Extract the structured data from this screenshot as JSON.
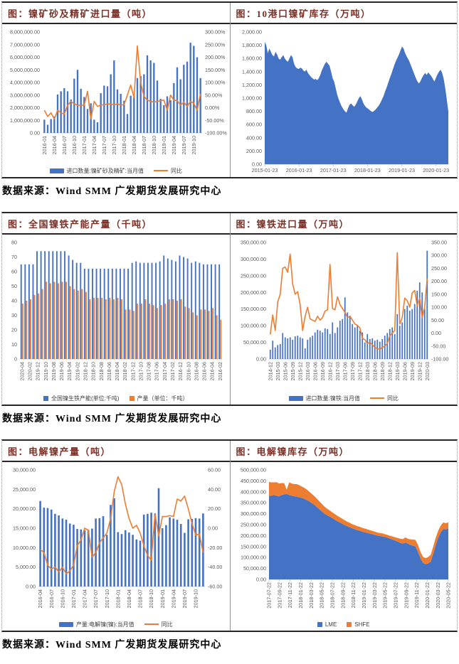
{
  "page": {
    "captions": [
      "数据来源：Wind SMM 广发期货发展研究中心",
      "数据来源：Wind SMM 广发期货发展研究中心",
      "数据来源：Wind SMM 广发期货发展研究中心"
    ]
  },
  "colors": {
    "bar_blue": "#4472C4",
    "line_orange": "#ED7D31",
    "title_maroon": "#7B3128",
    "axis_text": "#595959"
  },
  "chart_data": [
    {
      "type": "bar+line",
      "title": "图：镍矿砂及精矿进口量（吨）",
      "left_ticks": [
        "8,000,000.00",
        "7,000,000.00",
        "6,000,000.00",
        "5,000,000.00",
        "4,000,000.00",
        "3,000,000.00",
        "2,000,000.00",
        "1,000,000.00",
        "0.00"
      ],
      "right_ticks": [
        "300.00%",
        "250.00%",
        "200.00%",
        "150.00%",
        "100.00%",
        "50.00%",
        "0.00%",
        "-50.00%",
        "-100.00%"
      ],
      "left_range": [
        0,
        8000000
      ],
      "right_range": [
        -100,
        300
      ],
      "x_ticks": [
        "2016-01",
        "2016-04",
        "2016-07",
        "2016-10",
        "2017-01",
        "2017-04",
        "2017-07",
        "2017-10",
        "2018-01",
        "2018-04",
        "2018-07",
        "2018-10",
        "2019-01",
        "2019-04",
        "2019-07",
        "2019-10"
      ],
      "series": [
        {
          "name": "进口数量:镍矿砂及精矿:当月值",
          "type": "bar",
          "axis": "left",
          "color": "#4472C4",
          "values": [
            1050000,
            650000,
            1100000,
            1300000,
            3050000,
            3300000,
            3550000,
            3300000,
            2650000,
            4300000,
            5000000,
            3500000,
            2850000,
            1900000,
            2350000,
            1050000,
            850000,
            3150000,
            3750000,
            3700000,
            4650000,
            5750000,
            3450000,
            3100000,
            2550000,
            1500000,
            2950000,
            3000000,
            4350000,
            4500000,
            4650000,
            6150000,
            5750000,
            5550000,
            4150000,
            2700000,
            2200000,
            2900000,
            2600000,
            3950000,
            5200000,
            4250000,
            5400000,
            5650000,
            7150000,
            6900000,
            6000000,
            4350000
          ]
        },
        {
          "name": "同比",
          "type": "line",
          "axis": "right",
          "color": "#ED7D31",
          "values": [
            -10,
            -35,
            -20,
            -45,
            -10,
            -20,
            -25,
            10,
            25,
            15,
            10,
            10,
            10,
            65,
            -45,
            25,
            5,
            10,
            12,
            15,
            15,
            12,
            15,
            10,
            12,
            50,
            90,
            40,
            245,
            100,
            45,
            30,
            25,
            22,
            25,
            28,
            30,
            -10,
            50,
            30,
            28,
            10,
            22,
            5,
            25,
            18,
            -10,
            55
          ]
        }
      ]
    },
    {
      "type": "area",
      "title": "图：10港口镍矿库存（万吨）",
      "left_ticks": [
        "2,000.00",
        "1,800.00",
        "1,600.00",
        "1,400.00",
        "1,200.00",
        "1,000.00",
        "800.00",
        "600.00",
        "400.00",
        "200.00",
        "0.00"
      ],
      "left_range": [
        0,
        2000
      ],
      "x_ticks": [
        "2015-01-23",
        "2016-01-23",
        "2017-01-23",
        "2018-01-23",
        "2019-01-23",
        "2020-01-23"
      ],
      "series": [
        {
          "name": "10港口镍矿库存",
          "type": "area",
          "axis": "left",
          "color": "#4472C4",
          "values": [
            1850,
            1800,
            1680,
            1750,
            1700,
            1650,
            1630,
            1700,
            1660,
            1600,
            1580,
            1620,
            1650,
            1600,
            1570,
            1550,
            1600,
            1650,
            1620,
            1520,
            1470,
            1450,
            1440,
            1460,
            1450,
            1420,
            1400,
            1430,
            1380,
            1350,
            1320,
            1300,
            1280,
            1290,
            1270,
            1300,
            1350,
            1420,
            1470,
            1520,
            1550,
            1520,
            1490,
            1400,
            1300,
            1250,
            1150,
            1050,
            980,
            920,
            870,
            830,
            800,
            780,
            850,
            900,
            920,
            890,
            870,
            900,
            950,
            1000,
            1030,
            980,
            920,
            880,
            855,
            840,
            820,
            800,
            790,
            810,
            830,
            860,
            890,
            930,
            980,
            1030,
            1100,
            1160,
            1230,
            1300,
            1360,
            1430,
            1500,
            1560,
            1610,
            1660,
            1720,
            1780,
            1750,
            1680,
            1630,
            1590,
            1540,
            1480,
            1420,
            1360,
            1300,
            1250,
            1220,
            1260,
            1310,
            1350,
            1380,
            1350,
            1390,
            1360,
            1330,
            1290,
            1250,
            1310,
            1360,
            1400,
            1430,
            1380,
            1290,
            1150,
            980,
            800
          ]
        }
      ]
    },
    {
      "type": "grouped-bar",
      "title": "图：全国镍铁产能产量（千吨）",
      "left_ticks": [
        "80",
        "70",
        "60",
        "50",
        "40",
        "30",
        "20",
        "10",
        "0"
      ],
      "left_range": [
        0,
        80
      ],
      "x_ticks": [
        "2020-04",
        "2020-02",
        "2019-12",
        "2019-10",
        "2019-08",
        "2019-06",
        "2019-04",
        "2019-02",
        "2018-12",
        "2018-10",
        "2018-08",
        "2018-06",
        "2018-04",
        "2018-02",
        "2017-12",
        "2017-10",
        "2017-08",
        "2017-06",
        "2017-04",
        "2017-02",
        "2016-12",
        "2016-10",
        "2016-08",
        "2016-06",
        "2016-04",
        "2016-02"
      ],
      "series": [
        {
          "name": "全国镍生铁产能(单位:千吨)",
          "type": "bar",
          "axis": "left",
          "color": "#4472C4",
          "values": [
            65,
            65,
            65,
            65,
            74,
            74,
            74,
            74,
            74,
            74,
            74,
            74,
            71,
            68,
            66,
            66,
            62,
            62,
            62,
            62,
            62,
            62,
            62,
            62,
            62,
            62,
            62,
            62,
            66,
            67,
            66,
            66,
            66,
            66,
            66,
            67,
            71,
            69,
            68,
            67,
            71,
            70,
            69,
            66,
            67,
            66,
            65,
            65,
            65,
            65,
            65
          ]
        },
        {
          "name": "产量（单位：千吨）",
          "type": "bar",
          "axis": "left",
          "color": "#ED7D31",
          "values": [
            38,
            40,
            41,
            44,
            45,
            48,
            53,
            52,
            53,
            52,
            53,
            53,
            50,
            48,
            47,
            48,
            46,
            41,
            42,
            42,
            42,
            41,
            42,
            41,
            42,
            41,
            34,
            34,
            33,
            38,
            38,
            41,
            38,
            37,
            35,
            37,
            38,
            41,
            41,
            40,
            41,
            36,
            35,
            32,
            30,
            34,
            34,
            33,
            35,
            30,
            27
          ]
        }
      ]
    },
    {
      "type": "bar+line",
      "title": "图：镍铁进口量（万吨）",
      "left_ticks": [
        "350,000.00",
        "300,000.00",
        "250,000.00",
        "200,000.00",
        "150,000.00",
        "100,000.00",
        "50,000.00",
        "0.00"
      ],
      "right_ticks": [
        "350.00",
        "300.00",
        "250.00",
        "200.00",
        "150.00",
        "100.00",
        "50.00",
        "0.00",
        "-50.00",
        "-100.00"
      ],
      "left_range": [
        0,
        350000
      ],
      "right_range": [
        -100,
        350
      ],
      "x_ticks": [
        "2014-12",
        "2015-03",
        "2015-06",
        "2015-09",
        "2015-12",
        "2016-03",
        "2016-06",
        "2016-09",
        "2016-12",
        "2017-03",
        "2017-06",
        "2017-09",
        "2017-12",
        "2018-03",
        "2018-06",
        "2018-09",
        "2018-12",
        "2019-03",
        "2019-06",
        "2019-09",
        "2019-12",
        "2020-03"
      ],
      "series": [
        {
          "name": "进口数量:镍铁:当月值",
          "type": "bar",
          "axis": "left",
          "color": "#4472C4",
          "values": [
            28000,
            55000,
            35000,
            42000,
            45000,
            78000,
            65000,
            62000,
            65000,
            58000,
            68000,
            70000,
            65000,
            62000,
            32000,
            58000,
            65000,
            70000,
            80000,
            88000,
            85000,
            80000,
            92000,
            90000,
            75000,
            110000,
            78000,
            95000,
            115000,
            120000,
            185000,
            140000,
            130000,
            105000,
            95000,
            100000,
            85000,
            80000,
            50000,
            75000,
            60000,
            62000,
            55000,
            58000,
            52000,
            60000,
            70000,
            78000,
            90000,
            95000,
            75000,
            135000,
            100000,
            110000,
            150000,
            160000,
            145000,
            150000,
            165000,
            205000,
            230000,
            200000,
            150000,
            325000
          ]
        },
        {
          "name": "同比",
          "type": "line",
          "axis": "right",
          "color": "#ED7D31",
          "values": [
            -5,
            70,
            10,
            120,
            150,
            250,
            255,
            235,
            305,
            190,
            150,
            160,
            110,
            10,
            65,
            100,
            55,
            50,
            45,
            65,
            50,
            60,
            85,
            90,
            265,
            95,
            90,
            140,
            110,
            95,
            80,
            60,
            65,
            50,
            35,
            30,
            20,
            -20,
            -25,
            -40,
            -35,
            -45,
            -55,
            -60,
            -62,
            -55,
            -50,
            -40,
            -10,
            0,
            10,
            310,
            35,
            60,
            135,
            125,
            100,
            155,
            165,
            105,
            135,
            60,
            100,
            210
          ]
        }
      ]
    },
    {
      "type": "bar+line",
      "title": "图：电解镍产量（吨）",
      "left_ticks": [
        "30,000.00",
        "25,000.00",
        "20,000.00",
        "15,000.00",
        "10,000.00",
        "5,000.00",
        "0.00"
      ],
      "right_ticks": [
        "60.00",
        "40.00",
        "20.00",
        "0.00",
        "-20.00",
        "-40.00",
        "-60.00"
      ],
      "left_range": [
        0,
        30000
      ],
      "right_range": [
        -60,
        60
      ],
      "x_ticks": [
        "2016-04",
        "2016-07",
        "2016-10",
        "2017-01",
        "2017-04",
        "2017-07",
        "2017-10",
        "2018-01",
        "2018-04",
        "2018-07",
        "2018-10",
        "2019-01",
        "2019-04",
        "2019-07",
        "2019-10"
      ],
      "series": [
        {
          "name": "产量:电解镍(镍):当月值",
          "type": "bar",
          "axis": "left",
          "color": "#4472C4",
          "values": [
            22000,
            20300,
            20200,
            19800,
            18700,
            18300,
            17500,
            17200,
            16200,
            15900,
            14800,
            14700,
            14500,
            14500,
            14900,
            17500,
            17600,
            18100,
            13300,
            21000,
            22700,
            14000,
            13500,
            14500,
            13900,
            13300,
            12100,
            11800,
            18500,
            18700,
            19000,
            18800,
            25300,
            15000,
            15800,
            17800,
            17500,
            17200,
            16100,
            13800,
            17300,
            17400,
            17600,
            17500,
            18800
          ]
        },
        {
          "name": "同比",
          "type": "line",
          "axis": "right",
          "color": "#ED7D31",
          "values": [
            -22,
            -25,
            -38,
            -42,
            -40,
            -45,
            -40,
            -47,
            -44,
            -38,
            -18,
            -12,
            0,
            -2,
            -30,
            -25,
            -15,
            -10,
            -5,
            10,
            38,
            53,
            45,
            25,
            10,
            0,
            3,
            -5,
            -18,
            -28,
            -33,
            15,
            -8,
            12,
            12,
            13,
            12,
            30,
            28,
            33,
            20,
            5,
            -7,
            -6,
            -25
          ]
        }
      ]
    },
    {
      "type": "stacked-area",
      "title": "图：电解镍库存（万吨）",
      "left_ticks": [
        "500,000.00",
        "450,000.00",
        "400,000.00",
        "350,000.00",
        "300,000.00",
        "250,000.00",
        "200,000.00",
        "150,000.00",
        "100,000.00",
        "50,000.00",
        "0.00"
      ],
      "left_range": [
        0,
        500000
      ],
      "x_ticks": [
        "2017-07-22",
        "2017-09-22",
        "2017-11-22",
        "2018-01-22",
        "2018-03-22",
        "2018-05-22",
        "2018-07-22",
        "2018-09-22",
        "2018-11-22",
        "2019-01-22",
        "2019-03-22",
        "2019-05-22",
        "2019-07-22",
        "2019-09-22",
        "2019-11-22",
        "2020-01-22",
        "2020-03-22",
        "2020-05-22"
      ],
      "series": [
        {
          "name": "LME",
          "type": "area",
          "axis": "left",
          "color": "#4472C4",
          "values": [
            380000,
            383000,
            385000,
            382000,
            380000,
            385000,
            388000,
            390000,
            385000,
            382000,
            380000,
            378000,
            375000,
            372000,
            368000,
            362000,
            355000,
            348000,
            340000,
            330000,
            320000,
            310000,
            300000,
            293000,
            287000,
            280000,
            273000,
            266000,
            260000,
            254000,
            248000,
            243000,
            238000,
            233000,
            229000,
            225000,
            222000,
            218000,
            215000,
            212000,
            209000,
            206000,
            203000,
            200000,
            198000,
            196000,
            193000,
            190000,
            186000,
            182000,
            177000,
            172000,
            167000,
            163000,
            168000,
            163000,
            158000,
            154000,
            150000,
            125000,
            95000,
            75000,
            70000,
            73000,
            80000,
            115000,
            155000,
            190000,
            215000,
            230000,
            228000,
            232000
          ]
        },
        {
          "name": "SHFE",
          "type": "area",
          "axis": "left",
          "color": "#ED7D31",
          "values": [
            65000,
            60000,
            58000,
            62000,
            58000,
            55000,
            52000,
            20000,
            58000,
            56000,
            55000,
            57000,
            55000,
            52000,
            50000,
            48000,
            45000,
            42000,
            40000,
            38000,
            36000,
            34000,
            32000,
            30000,
            28000,
            27000,
            26000,
            25000,
            24000,
            23000,
            22000,
            21000,
            20000,
            19000,
            19000,
            18000,
            18000,
            17000,
            17000,
            16000,
            16000,
            15000,
            15000,
            14000,
            14000,
            14000,
            13000,
            13000,
            13000,
            14000,
            15000,
            17000,
            19000,
            21000,
            24000,
            22000,
            25000,
            28000,
            30000,
            32000,
            30000,
            28000,
            27000,
            29000,
            32000,
            34000,
            35000,
            33000,
            31000,
            30000,
            29000,
            28000
          ]
        }
      ]
    }
  ]
}
